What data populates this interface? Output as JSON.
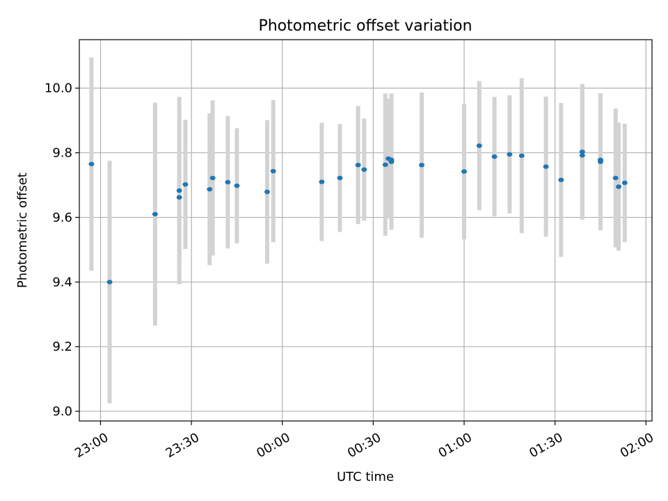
{
  "chart_data": {
    "type": "scatter",
    "title": "Photometric offset variation",
    "xlabel": "UTC time",
    "ylabel": "Photometric offset",
    "xlim": [
      "22:53",
      "02:02"
    ],
    "ylim": [
      8.97,
      10.15
    ],
    "grid": true,
    "x_ticks": [
      "23:00",
      "23:30",
      "00:00",
      "00:30",
      "01:00",
      "01:30",
      "02:00"
    ],
    "y_ticks": [
      "9.0",
      "9.2",
      "9.4",
      "9.6",
      "9.8",
      "10.0"
    ],
    "colors": {
      "point": "#1f77b4",
      "errorbar": "#d3d3d3",
      "grid": "#b0b0b0"
    },
    "series": [
      {
        "points": [
          {
            "x": "22:57",
            "y": 9.765,
            "err": 0.33
          },
          {
            "x": "23:03",
            "y": 9.4,
            "err": 0.375
          },
          {
            "x": "23:18",
            "y": 9.61,
            "err": 0.345
          },
          {
            "x": "23:26",
            "y": 9.683,
            "err": 0.29
          },
          {
            "x": "23:26",
            "y": 9.662,
            "err": 0.225
          },
          {
            "x": "23:28",
            "y": 9.702,
            "err": 0.2
          },
          {
            "x": "23:36",
            "y": 9.687,
            "err": 0.235
          },
          {
            "x": "23:37",
            "y": 9.722,
            "err": 0.24
          },
          {
            "x": "23:42",
            "y": 9.709,
            "err": 0.205
          },
          {
            "x": "23:45",
            "y": 9.698,
            "err": 0.178
          },
          {
            "x": "23:55",
            "y": 9.679,
            "err": 0.222
          },
          {
            "x": "23:57",
            "y": 9.743,
            "err": 0.22
          },
          {
            "x": "00:13",
            "y": 9.71,
            "err": 0.183
          },
          {
            "x": "00:19",
            "y": 9.722,
            "err": 0.167
          },
          {
            "x": "00:25",
            "y": 9.762,
            "err": 0.183
          },
          {
            "x": "00:27",
            "y": 9.748,
            "err": 0.158
          },
          {
            "x": "00:34",
            "y": 9.763,
            "err": 0.22
          },
          {
            "x": "00:35",
            "y": 9.782,
            "err": 0.185
          },
          {
            "x": "00:36",
            "y": 9.772,
            "err": 0.21
          },
          {
            "x": "00:36",
            "y": 9.778,
            "err": 0.205
          },
          {
            "x": "00:46",
            "y": 9.762,
            "err": 0.225
          },
          {
            "x": "01:00",
            "y": 9.742,
            "err": 0.21
          },
          {
            "x": "01:05",
            "y": 9.822,
            "err": 0.2
          },
          {
            "x": "01:10",
            "y": 9.788,
            "err": 0.185
          },
          {
            "x": "01:15",
            "y": 9.795,
            "err": 0.183
          },
          {
            "x": "01:19",
            "y": 9.791,
            "err": 0.24
          },
          {
            "x": "01:27",
            "y": 9.757,
            "err": 0.217
          },
          {
            "x": "01:32",
            "y": 9.716,
            "err": 0.238
          },
          {
            "x": "01:39",
            "y": 9.803,
            "err": 0.21
          },
          {
            "x": "01:39",
            "y": 9.792,
            "err": 0.196
          },
          {
            "x": "01:45",
            "y": 9.778,
            "err": 0.19
          },
          {
            "x": "01:45",
            "y": 9.772,
            "err": 0.212
          },
          {
            "x": "01:50",
            "y": 9.722,
            "err": 0.215
          },
          {
            "x": "01:51",
            "y": 9.695,
            "err": 0.198
          },
          {
            "x": "01:53",
            "y": 9.707,
            "err": 0.183
          }
        ]
      }
    ]
  }
}
